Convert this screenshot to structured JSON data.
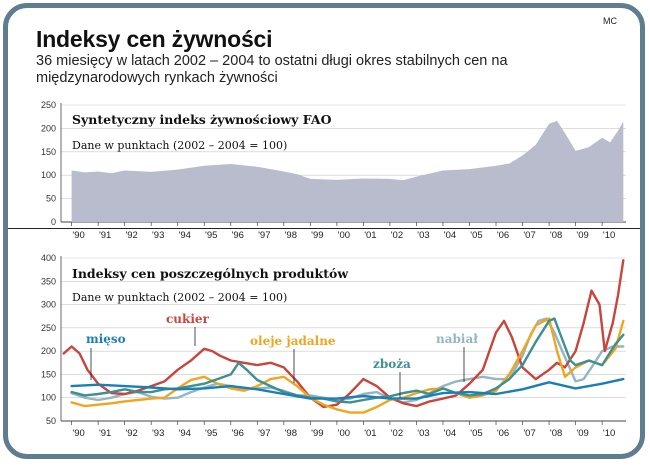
{
  "header": {
    "credit": "MC",
    "title": "Indeksy cen żywności",
    "subtitle": "36 miesięcy w latach 2002 – 2004 to ostatni długi okres stabilnych cen na międzynarodowych rynkach żywności"
  },
  "colors": {
    "frame": "#5e7d8e",
    "area": "#b9bccd",
    "mieso": "#1a7fb7",
    "cukier": "#c9443a",
    "oleje": "#f2a51c",
    "zboza": "#3e8f92",
    "nabial": "#93b6c4"
  },
  "chart_data": [
    {
      "type": "area",
      "title": "Syntetyczny indeks żywnościowy FAO",
      "note": "Dane w punktach (2002 – 2004 = 100)",
      "x_ticks": [
        "'90",
        "'91",
        "'92",
        "'93",
        "'94",
        "'95",
        "'96",
        "'97",
        "'98",
        "'99",
        "'00",
        "'01",
        "'02",
        "'03",
        "'04",
        "'05",
        "'06",
        "'07",
        "'08",
        "'09",
        "'10"
      ],
      "y_ticks": [
        0,
        50,
        100,
        150,
        200,
        250
      ],
      "ylim": [
        0,
        250
      ],
      "xlim": [
        1989.6,
        2010.9
      ],
      "series": [
        {
          "name": "FAO",
          "x": [
            1990,
            1990.5,
            1991,
            1991.5,
            1992,
            1993,
            1994,
            1995,
            1995.5,
            1996,
            1996.5,
            1997,
            1998,
            1998.5,
            1999,
            2000,
            2001,
            2002,
            2002.5,
            2003,
            2004,
            2005,
            2006,
            2006.5,
            2007,
            2007.5,
            2008,
            2008.3,
            2008.6,
            2009,
            2009.5,
            2010,
            2010.3,
            2010.6,
            2010.8
          ],
          "y": [
            110,
            106,
            108,
            104,
            110,
            107,
            112,
            120,
            122,
            124,
            121,
            118,
            108,
            102,
            92,
            90,
            93,
            92,
            89,
            97,
            110,
            113,
            120,
            125,
            142,
            165,
            210,
            216,
            190,
            152,
            160,
            180,
            170,
            195,
            214
          ]
        }
      ]
    },
    {
      "type": "line",
      "title": "Indeksy cen poszczególnych produktów",
      "note": "Dane w punktach (2002 – 2004 = 100)",
      "x_ticks": [
        "'90",
        "'91",
        "'92",
        "'93",
        "'94",
        "'95",
        "'96",
        "'97",
        "'98",
        "'99",
        "'00",
        "'01",
        "'02",
        "'03",
        "'04",
        "'05",
        "'06",
        "'07",
        "'08",
        "'09",
        "'10"
      ],
      "y_ticks": [
        50,
        100,
        150,
        200,
        250,
        300,
        350,
        400
      ],
      "ylim": [
        50,
        400
      ],
      "xlim": [
        1989.6,
        2010.9
      ],
      "series": [
        {
          "name": "mięso",
          "x": [
            1990,
            1991,
            1992,
            1993,
            1994,
            1995,
            1996,
            1997,
            1998,
            1999,
            2000,
            2001,
            2002,
            2003,
            2004,
            2005,
            2006,
            2007,
            2008,
            2009,
            2010,
            2010.8
          ],
          "y": [
            125,
            128,
            125,
            122,
            118,
            120,
            125,
            118,
            108,
            98,
            98,
            104,
            98,
            98,
            110,
            112,
            108,
            118,
            133,
            120,
            130,
            140
          ]
        },
        {
          "name": "cukier",
          "x": [
            1989.7,
            1990,
            1990.3,
            1990.6,
            1991,
            1991.5,
            1992,
            1992.5,
            1993,
            1993.5,
            1994,
            1994.5,
            1995,
            1995.3,
            1995.6,
            1996,
            1996.5,
            1997,
            1997.5,
            1998,
            1998.5,
            1999,
            1999.5,
            2000,
            2000.5,
            2001,
            2001.5,
            2002,
            2002.5,
            2003,
            2003.5,
            2004,
            2004.5,
            2005,
            2005.5,
            2006,
            2006.3,
            2006.6,
            2007,
            2007.5,
            2008,
            2008.3,
            2008.6,
            2009,
            2009.3,
            2009.6,
            2009.9,
            2010.1,
            2010.4,
            2010.6,
            2010.8
          ],
          "y": [
            195,
            210,
            195,
            160,
            130,
            110,
            108,
            115,
            125,
            135,
            160,
            180,
            205,
            200,
            190,
            180,
            175,
            170,
            175,
            165,
            135,
            100,
            80,
            85,
            110,
            140,
            125,
            100,
            88,
            82,
            92,
            98,
            105,
            130,
            160,
            240,
            265,
            230,
            165,
            140,
            160,
            175,
            165,
            200,
            260,
            330,
            300,
            200,
            260,
            320,
            395
          ]
        },
        {
          "name": "oleje jadalne",
          "x": [
            1990,
            1990.5,
            1991,
            1991.5,
            1992,
            1992.5,
            1993,
            1993.5,
            1994,
            1994.5,
            1995,
            1995.5,
            1996,
            1996.5,
            1997,
            1997.5,
            1998,
            1998.5,
            1999,
            1999.5,
            2000,
            2000.5,
            2001,
            2001.5,
            2002,
            2002.5,
            2003,
            2003.5,
            2004,
            2004.5,
            2005,
            2005.5,
            2006,
            2006.5,
            2007,
            2007.5,
            2008,
            2008.3,
            2008.6,
            2009,
            2009.5,
            2010,
            2010.5,
            2010.8
          ],
          "y": [
            90,
            82,
            85,
            88,
            92,
            95,
            98,
            100,
            120,
            138,
            145,
            130,
            120,
            115,
            125,
            140,
            145,
            125,
            100,
            85,
            75,
            68,
            68,
            80,
            95,
            100,
            110,
            118,
            120,
            110,
            100,
            105,
            115,
            150,
            200,
            255,
            270,
            200,
            145,
            165,
            180,
            170,
            205,
            265
          ]
        },
        {
          "name": "zboża",
          "x": [
            1990,
            1990.5,
            1991,
            1991.5,
            1992,
            1992.5,
            1993,
            1993.5,
            1994,
            1994.5,
            1995,
            1995.5,
            1996,
            1996.3,
            1996.6,
            1997,
            1997.5,
            1998,
            1998.5,
            1999,
            1999.5,
            2000,
            2000.5,
            2001,
            2001.5,
            2002,
            2002.5,
            2003,
            2003.5,
            2004,
            2004.5,
            2005,
            2005.5,
            2006,
            2006.5,
            2007,
            2007.5,
            2008,
            2008.2,
            2008.5,
            2008.8,
            2009,
            2009.5,
            2010,
            2010.5,
            2010.8
          ],
          "y": [
            112,
            105,
            108,
            112,
            118,
            112,
            112,
            118,
            120,
            125,
            130,
            140,
            150,
            175,
            160,
            138,
            125,
            112,
            105,
            100,
            98,
            92,
            90,
            95,
            100,
            103,
            110,
            115,
            108,
            120,
            110,
            105,
            108,
            120,
            140,
            170,
            220,
            265,
            270,
            225,
            180,
            170,
            180,
            170,
            215,
            235
          ]
        },
        {
          "name": "nabiał",
          "x": [
            1990,
            1990.5,
            1991,
            1991.5,
            1992,
            1992.5,
            1993,
            1993.5,
            1994,
            1994.5,
            1995,
            1995.5,
            1996,
            1996.5,
            1997,
            1997.5,
            1998,
            1998.5,
            1999,
            1999.5,
            2000,
            2000.5,
            2001,
            2001.5,
            2002,
            2002.5,
            2003,
            2003.5,
            2004,
            2004.5,
            2005,
            2005.5,
            2006,
            2006.5,
            2007,
            2007.3,
            2007.6,
            2007.9,
            2008.2,
            2008.5,
            2009,
            2009.3,
            2009.6,
            2010,
            2010.4,
            2010.8
          ],
          "y": [
            110,
            100,
            95,
            100,
            108,
            112,
            102,
            98,
            100,
            112,
            122,
            130,
            125,
            118,
            120,
            122,
            115,
            105,
            105,
            100,
            95,
            98,
            108,
            112,
            98,
            90,
            95,
            110,
            125,
            135,
            140,
            145,
            140,
            140,
            190,
            235,
            265,
            270,
            240,
            200,
            135,
            140,
            165,
            200,
            210,
            210
          ]
        }
      ]
    }
  ],
  "labels": {
    "mieso": "mięso",
    "cukier": "cukier",
    "oleje": "oleje jadalne",
    "zboza": "zboża",
    "nabial": "nabiał"
  }
}
